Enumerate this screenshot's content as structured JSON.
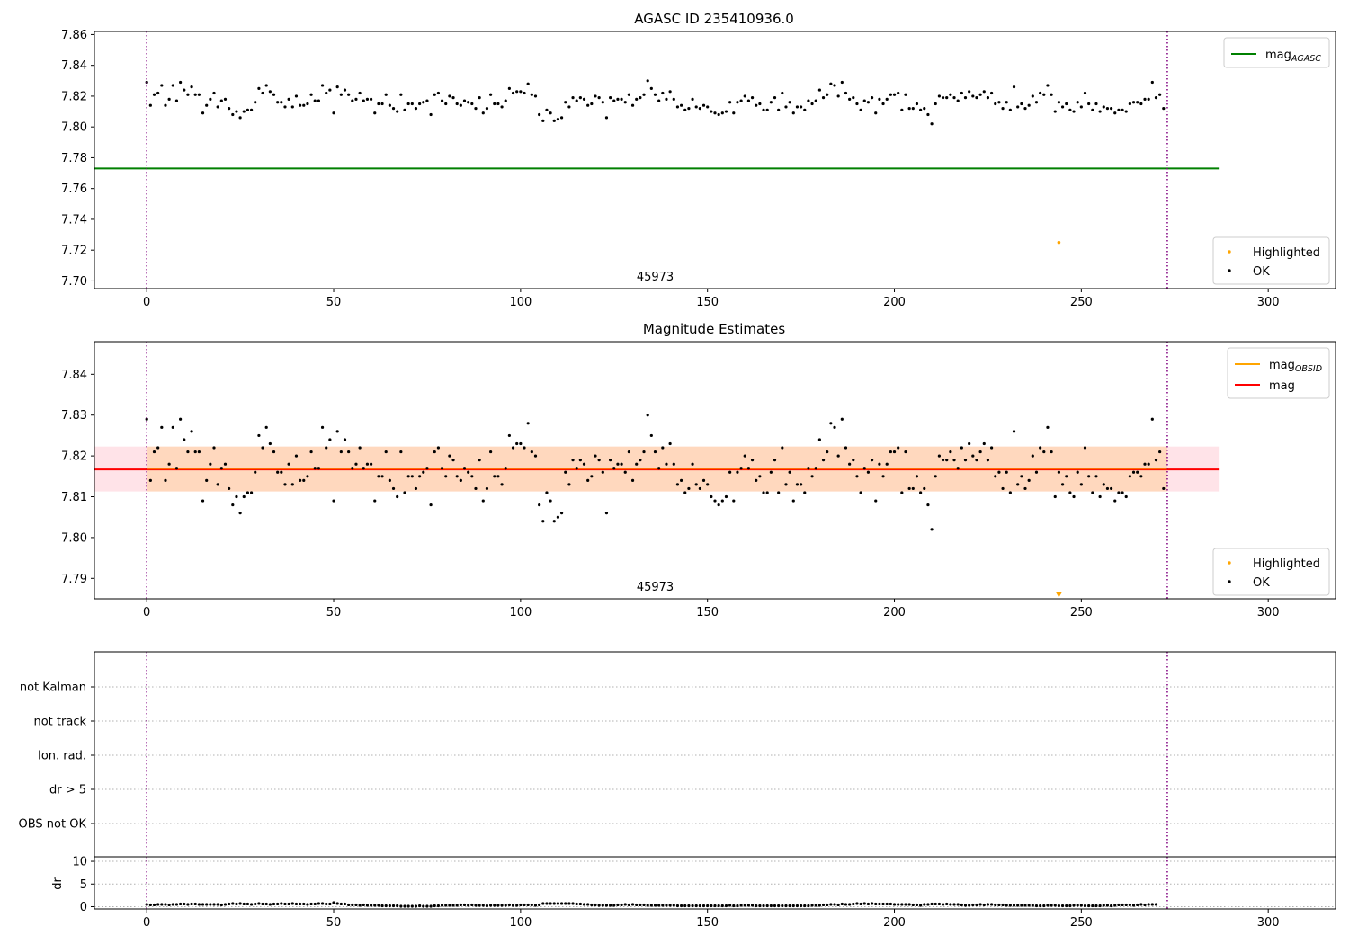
{
  "chart_data": [
    {
      "type": "scatter",
      "title": "AGASC ID 235410936.0",
      "xlim": [
        -14,
        318
      ],
      "ylim": [
        7.695,
        7.862
      ],
      "xticks": [
        0,
        50,
        100,
        150,
        200,
        250,
        300
      ],
      "yticks": [
        7.7,
        7.72,
        7.74,
        7.76,
        7.78,
        7.8,
        7.82,
        7.84,
        7.86
      ],
      "ytick_decimals": 2,
      "vlines": [
        0,
        273
      ],
      "obsid_label": "45973",
      "obsid_label_x": 136,
      "hlines": [
        {
          "name": "mag_AGASC",
          "y": 7.773,
          "x_from": -14,
          "x_to": 287,
          "color": "#008000"
        }
      ],
      "legend_upper": [
        {
          "label": "mag",
          "sub": "AGASC",
          "color": "#008000"
        }
      ],
      "legend_lower": [
        {
          "label": "Highlighted",
          "color": "#ffa500"
        },
        {
          "label": "OK",
          "color": "#000000"
        }
      ],
      "highlighted_points": [
        {
          "x": 244,
          "y": 7.725
        }
      ]
    },
    {
      "type": "scatter",
      "title": "Magnitude Estimates",
      "xlim": [
        -14,
        318
      ],
      "ylim": [
        7.785,
        7.848
      ],
      "xticks": [
        0,
        50,
        100,
        150,
        200,
        250,
        300
      ],
      "yticks": [
        7.79,
        7.8,
        7.81,
        7.82,
        7.83,
        7.84
      ],
      "ytick_decimals": 2,
      "vlines": [
        0,
        273
      ],
      "obsid_label": "45973",
      "obsid_label_x": 136,
      "mag": 7.8167,
      "mag_band": [
        7.8113,
        7.8223
      ],
      "band_x_to": 287,
      "legend_upper": [
        {
          "label": "mag",
          "sub": "OBSID",
          "color": "#ffa500"
        },
        {
          "label": "mag",
          "sub": "",
          "color": "#ff0000"
        }
      ],
      "legend_lower": [
        {
          "label": "Highlighted",
          "color": "#ffa500"
        },
        {
          "label": "OK",
          "color": "#000000"
        }
      ],
      "highlighted_marker": {
        "x": 244,
        "y": 7.786
      }
    },
    {
      "type": "scatter",
      "title": "",
      "categories": [
        "not Kalman",
        "not track",
        "Ion. rad.",
        "dr > 5",
        "OBS not OK"
      ],
      "vlines": [
        0,
        273
      ],
      "xlim": [
        -14,
        318
      ]
    },
    {
      "type": "scatter",
      "title": "",
      "ylabel": "dr",
      "ylim": [
        -0.5,
        11
      ],
      "yticks": [
        0,
        5,
        10
      ],
      "xlim": [
        -14,
        318
      ],
      "xticks": [
        0,
        50,
        100,
        150,
        200,
        250,
        300
      ],
      "vlines": [
        0,
        273
      ]
    }
  ],
  "series": {
    "n": 274,
    "mag_obs": [
      7.829,
      7.814,
      7.821,
      7.822,
      7.827,
      7.814,
      7.818,
      7.827,
      7.817,
      7.829,
      7.824,
      7.821,
      7.826,
      7.821,
      7.821,
      7.809,
      7.814,
      7.818,
      7.822,
      7.813,
      7.817,
      7.818,
      7.812,
      7.808,
      7.81,
      7.806,
      7.81,
      7.811,
      7.811,
      7.816,
      7.825,
      7.822,
      7.827,
      7.823,
      7.821,
      7.816,
      7.816,
      7.813,
      7.818,
      7.813,
      7.82,
      7.814,
      7.814,
      7.815,
      7.821,
      7.817,
      7.817,
      7.827,
      7.822,
      7.824,
      7.809,
      7.826,
      7.821,
      7.824,
      7.821,
      7.817,
      7.818,
      7.822,
      7.817,
      7.818,
      7.818,
      7.809,
      7.815,
      7.815,
      7.821,
      7.814,
      7.812,
      7.81,
      7.821,
      7.811,
      7.815,
      7.815,
      7.812,
      7.815,
      7.816,
      7.817,
      7.808,
      7.821,
      7.822,
      7.817,
      7.815,
      7.82,
      7.819,
      7.815,
      7.814,
      7.817,
      7.816,
      7.815,
      7.812,
      7.819,
      7.809,
      7.812,
      7.821,
      7.815,
      7.815,
      7.813,
      7.817,
      7.825,
      7.822,
      7.823,
      7.823,
      7.822,
      7.828,
      7.821,
      7.82,
      7.808,
      7.804,
      7.811,
      7.809,
      7.804,
      7.805,
      7.806,
      7.816,
      7.813,
      7.819,
      7.817,
      7.819,
      7.818,
      7.814,
      7.815,
      7.82,
      7.819,
      7.816,
      7.806,
      7.819,
      7.817,
      7.818,
      7.818,
      7.816,
      7.821,
      7.814,
      7.818,
      7.819,
      7.821,
      7.83,
      7.825,
      7.821,
      7.817,
      7.822,
      7.818,
      7.823,
      7.818,
      7.813,
      7.814,
      7.811,
      7.812,
      7.818,
      7.813,
      7.812,
      7.814,
      7.813,
      7.81,
      7.809,
      7.808,
      7.809,
      7.81,
      7.816,
      7.809,
      7.816,
      7.817,
      7.82,
      7.817,
      7.819,
      7.814,
      7.815,
      7.811,
      7.811,
      7.816,
      7.819,
      7.811,
      7.822,
      7.813,
      7.816,
      7.809,
      7.813,
      7.813,
      7.811,
      7.817,
      7.815,
      7.817,
      7.824,
      7.819,
      7.821,
      7.828,
      7.827,
      7.82,
      7.829,
      7.822,
      7.818,
      7.819,
      7.815,
      7.811,
      7.817,
      7.816,
      7.819,
      7.809,
      7.818,
      7.815,
      7.818,
      7.821,
      7.821,
      7.822,
      7.811,
      7.821,
      7.812,
      7.812,
      7.815,
      7.811,
      7.812,
      7.808,
      7.802,
      7.815,
      7.82,
      7.819,
      7.819,
      7.821,
      7.819,
      7.817,
      7.822,
      7.819,
      7.823,
      7.82,
      7.819,
      7.821,
      7.823,
      7.819,
      7.822,
      7.815,
      7.816,
      7.812,
      7.816,
      7.811,
      7.826,
      7.813,
      7.815,
      7.812,
      7.814,
      7.82,
      7.816,
      7.822,
      7.821,
      7.827,
      7.821,
      7.81,
      7.816,
      7.813,
      7.815,
      7.811,
      7.81,
      7.816,
      7.813,
      7.822,
      7.815,
      7.811,
      7.815,
      7.81,
      7.813,
      7.812,
      7.812,
      7.809,
      7.811,
      7.811,
      7.81,
      7.815,
      7.816,
      7.816,
      7.815,
      7.818,
      7.818,
      7.829,
      7.819,
      7.821,
      7.812
    ],
    "dr": [
      0.5,
      0.4,
      0.4,
      0.5,
      0.5,
      0.5,
      0.4,
      0.5,
      0.5,
      0.6,
      0.6,
      0.5,
      0.6,
      0.6,
      0.5,
      0.5,
      0.5,
      0.5,
      0.5,
      0.5,
      0.4,
      0.5,
      0.6,
      0.7,
      0.6,
      0.7,
      0.6,
      0.6,
      0.5,
      0.6,
      0.7,
      0.6,
      0.6,
      0.5,
      0.6,
      0.6,
      0.7,
      0.6,
      0.6,
      0.7,
      0.6,
      0.6,
      0.6,
      0.5,
      0.6,
      0.6,
      0.7,
      0.7,
      0.6,
      0.6,
      0.9,
      0.7,
      0.6,
      0.6,
      0.4,
      0.4,
      0.4,
      0.3,
      0.4,
      0.3,
      0.3,
      0.3,
      0.3,
      0.2,
      0.2,
      0.2,
      0.2,
      0.2,
      0.1,
      0.1,
      0.1,
      0.1,
      0.1,
      0.2,
      0.1,
      0.1,
      0.1,
      0.2,
      0.2,
      0.3,
      0.3,
      0.3,
      0.3,
      0.3,
      0.4,
      0.4,
      0.3,
      0.4,
      0.3,
      0.3,
      0.3,
      0.2,
      0.3,
      0.3,
      0.3,
      0.3,
      0.3,
      0.4,
      0.3,
      0.3,
      0.4,
      0.4,
      0.4,
      0.4,
      0.3,
      0.4,
      0.7,
      0.7,
      0.7,
      0.7,
      0.7,
      0.7,
      0.7,
      0.7,
      0.7,
      0.6,
      0.6,
      0.5,
      0.5,
      0.4,
      0.4,
      0.3,
      0.3,
      0.3,
      0.3,
      0.3,
      0.4,
      0.4,
      0.5,
      0.4,
      0.5,
      0.4,
      0.4,
      0.4,
      0.3,
      0.3,
      0.3,
      0.3,
      0.3,
      0.3,
      0.3,
      0.3,
      0.2,
      0.2,
      0.2,
      0.2,
      0.2,
      0.2,
      0.2,
      0.2,
      0.2,
      0.2,
      0.2,
      0.2,
      0.2,
      0.2,
      0.3,
      0.2,
      0.2,
      0.3,
      0.3,
      0.3,
      0.3,
      0.2,
      0.2,
      0.2,
      0.2,
      0.2,
      0.2,
      0.2,
      0.2,
      0.2,
      0.2,
      0.2,
      0.2,
      0.2,
      0.2,
      0.2,
      0.3,
      0.3,
      0.3,
      0.4,
      0.4,
      0.5,
      0.5,
      0.4,
      0.6,
      0.5,
      0.5,
      0.6,
      0.7,
      0.6,
      0.7,
      0.6,
      0.7,
      0.6,
      0.6,
      0.6,
      0.6,
      0.6,
      0.5,
      0.5,
      0.5,
      0.5,
      0.5,
      0.4,
      0.4,
      0.3,
      0.5,
      0.5,
      0.6,
      0.6,
      0.6,
      0.5,
      0.6,
      0.5,
      0.5,
      0.5,
      0.4,
      0.3,
      0.3,
      0.4,
      0.4,
      0.5,
      0.4,
      0.5,
      0.5,
      0.4,
      0.4,
      0.4,
      0.3,
      0.3,
      0.3,
      0.3,
      0.3,
      0.3,
      0.3,
      0.3,
      0.2,
      0.2,
      0.2,
      0.3,
      0.3,
      0.3,
      0.2,
      0.2,
      0.2,
      0.2,
      0.3,
      0.3,
      0.3,
      0.2,
      0.2,
      0.2,
      0.2,
      0.2,
      0.3,
      0.3,
      0.2,
      0.3,
      0.4,
      0.4,
      0.4,
      0.4,
      0.3,
      0.4,
      0.5,
      0.4,
      0.5,
      0.5,
      0.5
    ]
  }
}
